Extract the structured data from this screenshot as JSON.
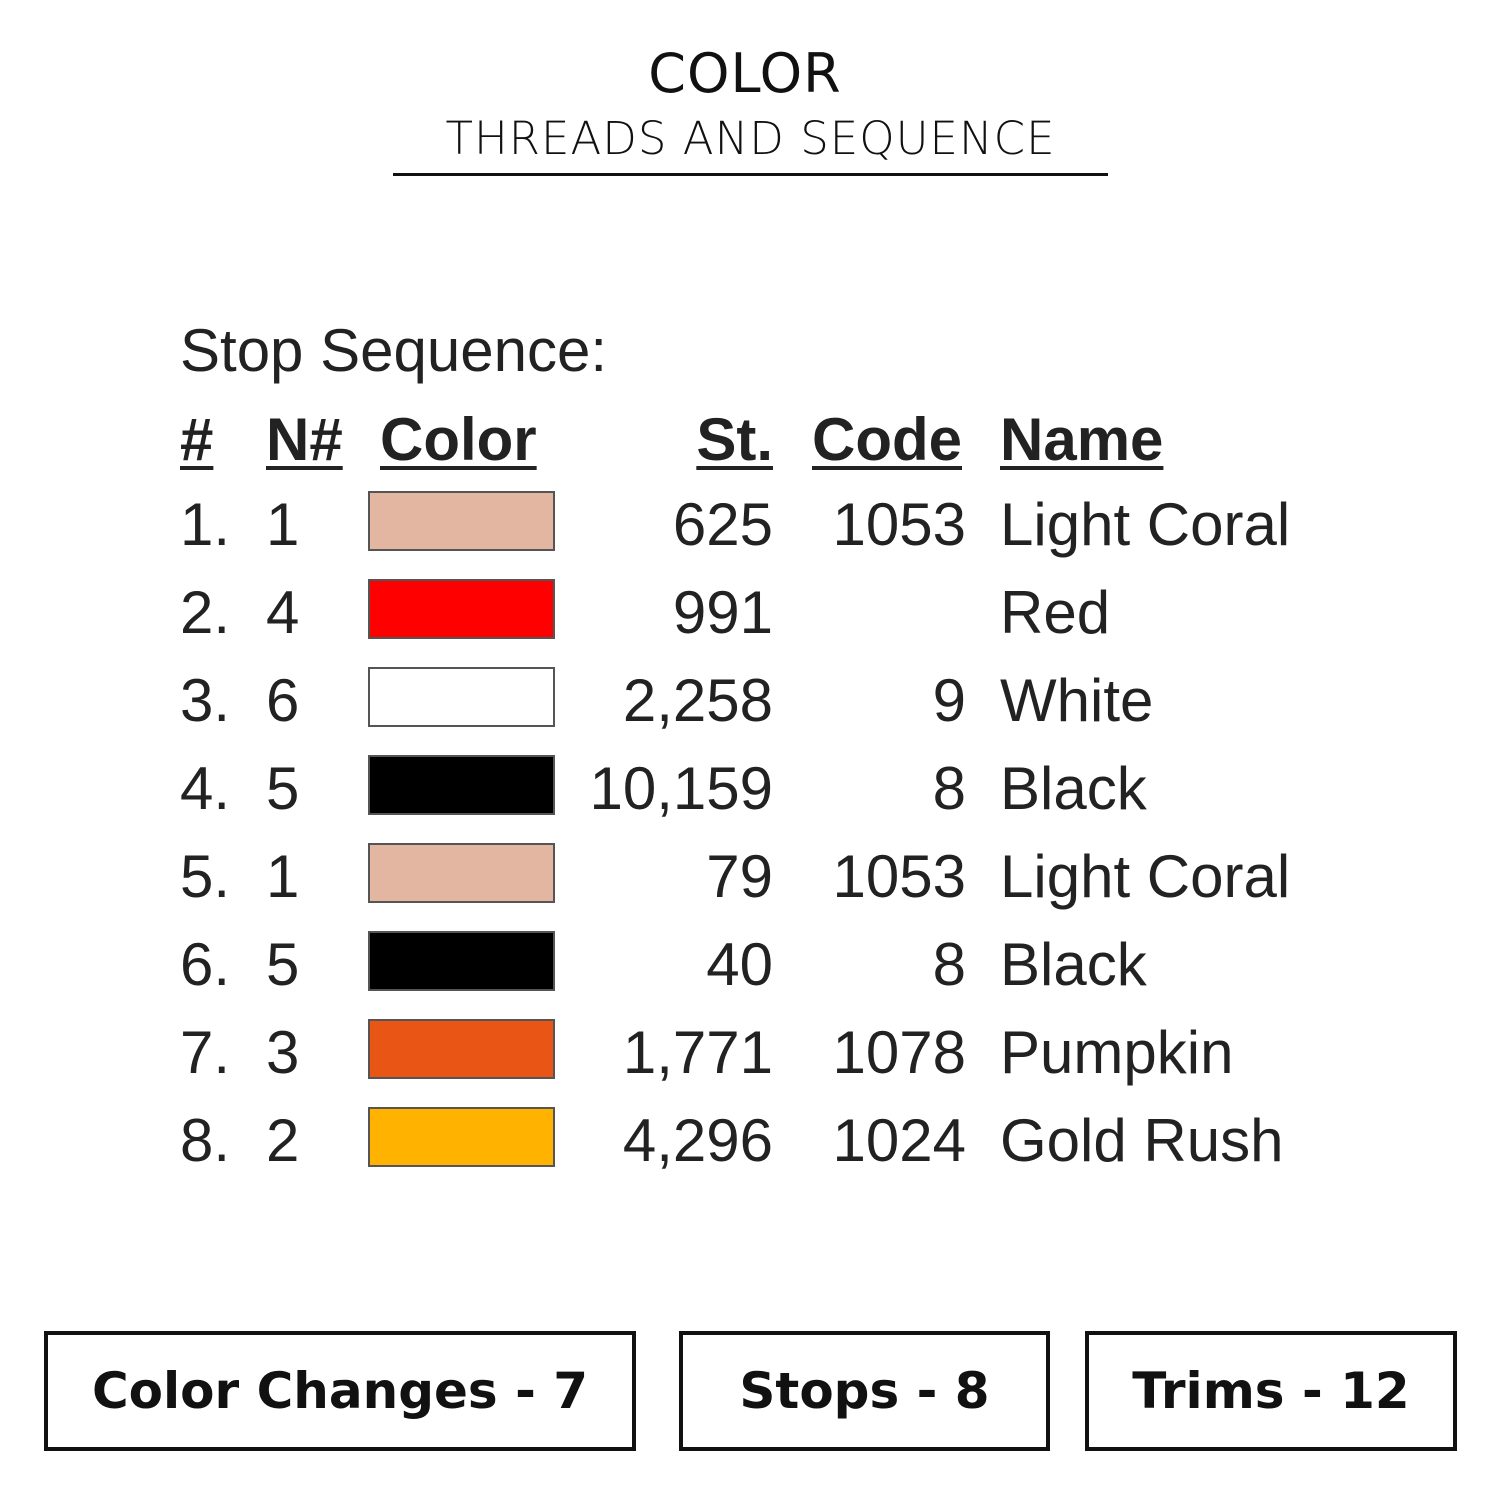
{
  "header": {
    "title": "COLOR",
    "subtitle": "THREADS AND SEQUENCE"
  },
  "sequence": {
    "label": "Stop Sequence:",
    "columns": {
      "num": "#",
      "needle": "N#",
      "color": "Color",
      "stitches": "St.",
      "code": "Code",
      "name": "Name"
    },
    "rows": [
      {
        "num": "1.",
        "needle": "1",
        "color": "#E3B6A1",
        "stitches": "625",
        "code": "1053",
        "name": "Light Coral"
      },
      {
        "num": "2.",
        "needle": "4",
        "color": "#FF0000",
        "stitches": "991",
        "code": "",
        "name": "Red"
      },
      {
        "num": "3.",
        "needle": "6",
        "color": "#FFFFFF",
        "stitches": "2,258",
        "code": "9",
        "name": "White"
      },
      {
        "num": "4.",
        "needle": "5",
        "color": "#000000",
        "stitches": "10,159",
        "code": "8",
        "name": "Black"
      },
      {
        "num": "5.",
        "needle": "1",
        "color": "#E3B6A1",
        "stitches": "79",
        "code": "1053",
        "name": "Light Coral"
      },
      {
        "num": "6.",
        "needle": "5",
        "color": "#000000",
        "stitches": "40",
        "code": "8",
        "name": "Black"
      },
      {
        "num": "7.",
        "needle": "3",
        "color": "#E85514",
        "stitches": "1,771",
        "code": "1078",
        "name": "Pumpkin"
      },
      {
        "num": "8.",
        "needle": "2",
        "color": "#FFB300",
        "stitches": "4,296",
        "code": "1024",
        "name": "Gold Rush"
      }
    ]
  },
  "summary": {
    "color_changes": "Color Changes - 7",
    "stops": "Stops - 8",
    "trims": "Trims - 12"
  }
}
